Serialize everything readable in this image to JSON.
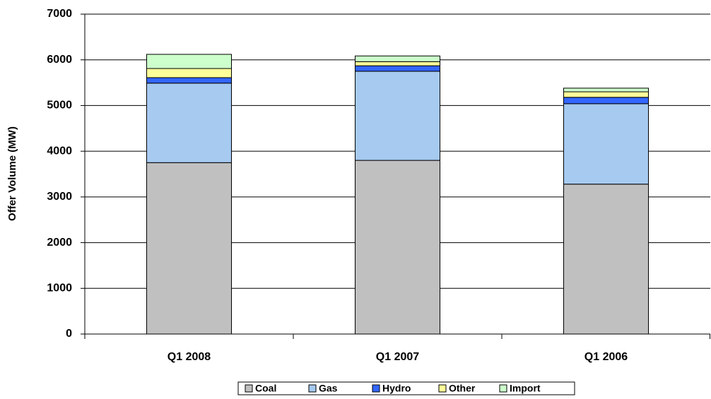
{
  "chart_data": {
    "type": "stacked_bar",
    "y_label": "Offer Volume (MW)",
    "categories": [
      "Q1 2008",
      "Q1 2007",
      "Q1 2006"
    ],
    "series": [
      {
        "name": "Coal",
        "color": "#c0c0c0",
        "values": [
          3750,
          3800,
          3280
        ]
      },
      {
        "name": "Gas",
        "color": "#a6caf0",
        "values": [
          1740,
          1950,
          1760
        ]
      },
      {
        "name": "Hydro",
        "color": "#3366ff",
        "values": [
          120,
          120,
          140
        ]
      },
      {
        "name": "Other",
        "color": "#ffff99",
        "values": [
          200,
          90,
          120
        ]
      },
      {
        "name": "Import",
        "color": "#ccffcc",
        "values": [
          310,
          125,
          80
        ]
      }
    ],
    "ylim": [
      0,
      7000
    ],
    "yticks": [
      0,
      1000,
      2000,
      3000,
      4000,
      5000,
      6000,
      7000
    ],
    "grid": true,
    "legend": "bottom"
  }
}
